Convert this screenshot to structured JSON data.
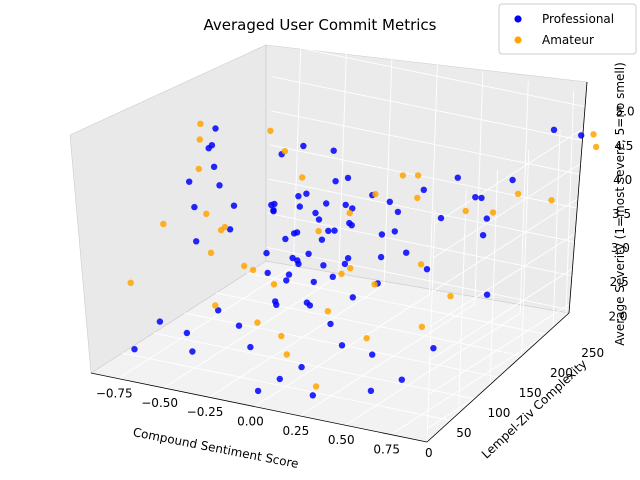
{
  "chart_data": {
    "type": "scatter",
    "projection": "3d",
    "title": "Averaged User Commit Metrics",
    "xlabel": "Compound Sentiment Score",
    "ylabel": "Lempel-Ziv Complexity",
    "zlabel": "Average Severity (1=most severe, 5=no smell)",
    "xlim": [
      -0.9,
      0.95
    ],
    "ylim": [
      0,
      280
    ],
    "zlim": [
      1.8,
      5.2
    ],
    "xticks": [
      "−0.75",
      "−0.50",
      "−0.25",
      "0.00",
      "0.25",
      "0.50",
      "0.75"
    ],
    "yticks": [
      "0",
      "50",
      "100",
      "150",
      "200",
      "250"
    ],
    "zticks": [
      "2.0",
      "2.5",
      "3.0",
      "3.5",
      "4.0",
      "4.5",
      "5.0"
    ],
    "grid": true,
    "legend_position": "top-right",
    "colors": {
      "Professional": "#0000ff",
      "Amateur": "#ffa500"
    },
    "series": [
      {
        "name": "Professional",
        "points": [
          [
            0.0,
            60,
            4.0
          ],
          [
            0.05,
            80,
            4.1
          ],
          [
            0.1,
            50,
            3.8
          ],
          [
            -0.05,
            70,
            3.9
          ],
          [
            0.02,
            100,
            4.2
          ],
          [
            0.08,
            40,
            3.7
          ],
          [
            -0.1,
            90,
            4.3
          ],
          [
            0.15,
            60,
            3.6
          ],
          [
            0.0,
            120,
            4.4
          ],
          [
            0.05,
            30,
            3.5
          ],
          [
            0.12,
            75,
            4.0
          ],
          [
            -0.02,
            55,
            3.4
          ],
          [
            0.2,
            85,
            4.1
          ],
          [
            0.03,
            140,
            3.9
          ],
          [
            -0.15,
            65,
            4.2
          ],
          [
            0.1,
            110,
            3.3
          ],
          [
            0.06,
            45,
            4.5
          ],
          [
            -0.08,
            35,
            3.8
          ],
          [
            0.18,
            95,
            4.0
          ],
          [
            0.01,
            25,
            3.2
          ],
          [
            -0.2,
            80,
            4.1
          ],
          [
            0.25,
            70,
            3.7
          ],
          [
            0.07,
            160,
            4.0
          ],
          [
            -0.03,
            130,
            3.6
          ],
          [
            0.14,
            20,
            3.9
          ],
          [
            -0.7,
            120,
            4.5
          ],
          [
            -0.6,
            100,
            4.4
          ],
          [
            -0.5,
            80,
            4.3
          ],
          [
            -0.4,
            150,
            4.4
          ],
          [
            -0.35,
            60,
            4.2
          ],
          [
            -0.3,
            40,
            4.0
          ],
          [
            -0.45,
            30,
            3.8
          ],
          [
            -0.55,
            55,
            4.1
          ],
          [
            -0.65,
            75,
            4.3
          ],
          [
            -0.75,
            140,
            4.4
          ],
          [
            -0.8,
            160,
            4.5
          ],
          [
            0.4,
            100,
            4.0
          ],
          [
            0.5,
            90,
            3.8
          ],
          [
            0.55,
            130,
            4.1
          ],
          [
            0.6,
            170,
            4.2
          ],
          [
            0.7,
            160,
            4.0
          ],
          [
            0.75,
            140,
            3.9
          ],
          [
            0.65,
            80,
            3.7
          ],
          [
            0.45,
            60,
            3.5
          ],
          [
            0.35,
            50,
            3.3
          ],
          [
            0.3,
            30,
            3.0
          ],
          [
            0.4,
            20,
            2.8
          ],
          [
            0.5,
            40,
            2.6
          ],
          [
            0.2,
            15,
            2.4
          ],
          [
            0.1,
            10,
            2.2
          ],
          [
            -0.1,
            20,
            2.5
          ],
          [
            -0.2,
            30,
            2.7
          ],
          [
            -0.3,
            25,
            2.9
          ],
          [
            -0.4,
            15,
            2.3
          ],
          [
            -0.5,
            35,
            2.4
          ],
          [
            -0.6,
            20,
            2.6
          ],
          [
            -0.7,
            10,
            2.2
          ],
          [
            0.0,
            5,
            2.0
          ],
          [
            0.3,
            5,
            2.1
          ],
          [
            0.6,
            10,
            2.3
          ],
          [
            0.7,
            30,
            2.4
          ],
          [
            0.8,
            50,
            2.8
          ],
          [
            0.85,
            120,
            3.2
          ],
          [
            0.9,
            250,
            4.8
          ],
          [
            0.75,
            250,
            4.8
          ],
          [
            0.6,
            230,
            4.1
          ],
          [
            0.5,
            210,
            3.9
          ],
          [
            0.4,
            200,
            4.2
          ],
          [
            0.25,
            190,
            4.0
          ],
          [
            0.1,
            180,
            3.8
          ],
          [
            -0.1,
            170,
            4.1
          ],
          [
            -0.25,
            190,
            4.3
          ],
          [
            -0.45,
            200,
            4.2
          ],
          [
            0.0,
            90,
            3.1
          ],
          [
            0.05,
            70,
            2.9
          ],
          [
            -0.05,
            45,
            3.0
          ],
          [
            0.15,
            35,
            3.2
          ],
          [
            -0.12,
            50,
            3.4
          ],
          [
            0.22,
            55,
            3.5
          ],
          [
            -0.18,
            95,
            3.6
          ],
          [
            0.28,
            115,
            3.8
          ],
          [
            -0.28,
            105,
            4.0
          ],
          [
            0.33,
            125,
            4.1
          ],
          [
            -0.33,
            115,
            3.9
          ],
          [
            0.38,
            85,
            3.7
          ],
          [
            0.08,
            65,
            4.3
          ],
          [
            -0.04,
            85,
            4.4
          ],
          [
            0.11,
            105,
            4.2
          ],
          [
            0.02,
            95,
            3.7
          ],
          [
            -0.07,
            75,
            3.5
          ]
        ]
      },
      {
        "name": "Amateur",
        "points": [
          [
            -0.85,
            150,
            4.6
          ],
          [
            -0.75,
            120,
            4.6
          ],
          [
            -0.65,
            90,
            4.4
          ],
          [
            -0.5,
            60,
            4.0
          ],
          [
            -0.4,
            40,
            3.6
          ],
          [
            -0.3,
            20,
            3.0
          ],
          [
            -0.2,
            50,
            3.4
          ],
          [
            -0.1,
            30,
            2.8
          ],
          [
            0.1,
            20,
            2.5
          ],
          [
            0.25,
            40,
            3.1
          ],
          [
            0.4,
            70,
            3.4
          ],
          [
            0.55,
            100,
            3.6
          ],
          [
            0.65,
            140,
            4.2
          ],
          [
            0.8,
            180,
            4.3
          ],
          [
            0.85,
            220,
            4.0
          ],
          [
            0.9,
            270,
            4.7
          ],
          [
            0.95,
            260,
            4.6
          ],
          [
            0.35,
            150,
            4.5
          ],
          [
            0.2,
            170,
            4.3
          ],
          [
            0.05,
            130,
            3.9
          ],
          [
            -0.05,
            110,
            3.7
          ],
          [
            -0.25,
            140,
            4.2
          ],
          [
            -0.45,
            170,
            4.3
          ],
          [
            -0.6,
            190,
            4.4
          ],
          [
            0.7,
            60,
            3.0
          ],
          [
            0.5,
            30,
            2.9
          ],
          [
            0.3,
            10,
            2.2
          ],
          [
            -0.35,
            80,
            3.2
          ],
          [
            -0.55,
            100,
            3.5
          ],
          [
            0.15,
            90,
            3.3
          ],
          [
            0.6,
            200,
            3.8
          ],
          [
            -0.15,
            70,
            3.1
          ],
          [
            0.45,
            120,
            4.4
          ],
          [
            -0.7,
            50,
            3.8
          ],
          [
            0.0,
            40,
            2.6
          ],
          [
            -0.8,
            30,
            3.0
          ],
          [
            0.75,
            90,
            3.3
          ],
          [
            0.28,
            65,
            3.6
          ],
          [
            -0.38,
            55,
            3.9
          ],
          [
            0.12,
            150,
            4.1
          ]
        ]
      }
    ]
  }
}
